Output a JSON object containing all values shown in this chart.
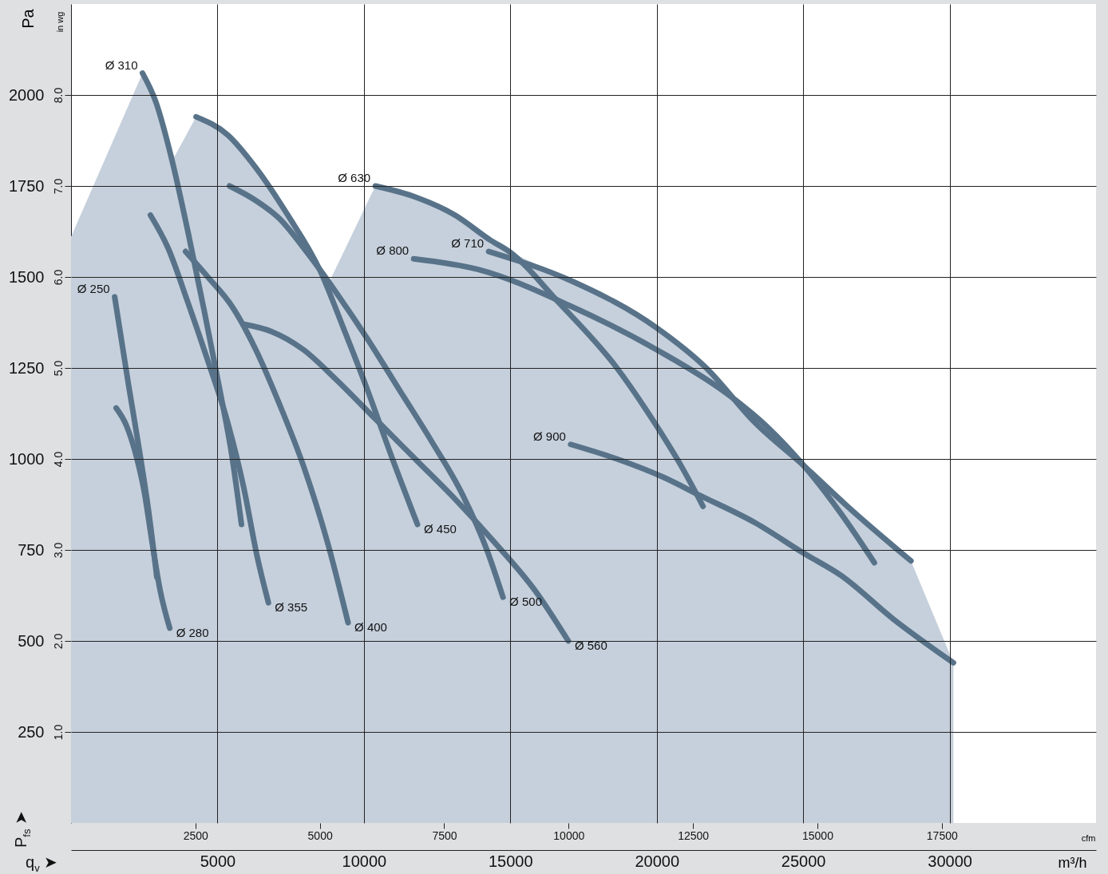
{
  "chart_data": {
    "type": "line",
    "xlabel": "m³/h",
    "x2label": "cfm",
    "ylabel": "Pa",
    "y2label": "in wg",
    "xlim": [
      0,
      35000
    ],
    "xticks": [
      5000,
      10000,
      15000,
      20000,
      25000,
      30000
    ],
    "x2lim": [
      0,
      20600
    ],
    "x2ticks": [
      2500,
      5000,
      7500,
      10000,
      12500,
      15000,
      17500
    ],
    "ylim": [
      0,
      2250
    ],
    "yticks": [
      250,
      500,
      750,
      1000,
      1250,
      1500,
      1750,
      2000
    ],
    "y2lim": [
      0,
      9.0
    ],
    "y2ticks": [
      {
        "value": 1,
        "label": "1.0"
      },
      {
        "value": 2,
        "label": "2.0"
      },
      {
        "value": 3,
        "label": "3.0"
      },
      {
        "value": 4,
        "label": "4.0"
      },
      {
        "value": 5,
        "label": "5.0"
      },
      {
        "value": 6,
        "label": "6.0"
      },
      {
        "value": 7,
        "label": "7.0"
      },
      {
        "value": 8,
        "label": "8.0"
      }
    ],
    "grid": true,
    "series": [
      {
        "type": "area",
        "color": "#c6d0dc",
        "x": [
          0,
          2440,
          3530,
          4270,
          5350,
          6310,
          7400,
          8490,
          8840,
          10390,
          11750,
          13110,
          14960,
          17060,
          20000,
          21690,
          23350,
          25040,
          26510,
          28680,
          30130
        ],
        "values": [
          1610,
          2060,
          1830,
          1940,
          1890,
          1800,
          1670,
          1520,
          1490,
          1750,
          1720,
          1670,
          1570,
          1490,
          1360,
          1250,
          1100,
          980,
          870,
          720,
          440
        ]
      },
      {
        "color": "#587389",
        "x": [
          1490,
          1950,
          2360,
          2660,
          2930
        ],
        "values": [
          1445,
          1210,
          1010,
          850,
          675
        ]
      },
      {
        "color": "#587389",
        "x": [
          1540,
          1900,
          2220,
          2500,
          2770,
          3040,
          3370
        ],
        "values": [
          1140,
          1090,
          1010,
          910,
          770,
          640,
          535
        ]
      },
      {
        "type": "line",
        "color": "#587389",
        "x": [
          2440,
          2900,
          3450,
          3990,
          4540,
          5080,
          5490,
          5820
        ],
        "values": [
          2060,
          1980,
          1820,
          1625,
          1410,
          1190,
          1010,
          820
        ]
      },
      {
        "type": "line",
        "color": "#587389",
        "x": [
          2710,
          3310,
          3990,
          4670,
          5350,
          5900,
          6360,
          6740
        ],
        "values": [
          1670,
          1580,
          1430,
          1270,
          1100,
          920,
          730,
          605
        ]
      },
      {
        "type": "line",
        "color": "#587389",
        "x": [
          3910,
          4670,
          5490,
          6310,
          7120,
          7940,
          8760,
          9460
        ],
        "values": [
          1570,
          1500,
          1420,
          1300,
          1150,
          980,
          770,
          550
        ]
      },
      {
        "type": "line",
        "color": "#587389",
        "x": [
          4270,
          5350,
          6310,
          7400,
          8490,
          9300,
          10120,
          10930,
          11830
        ],
        "values": [
          1940,
          1890,
          1800,
          1670,
          1520,
          1360,
          1190,
          1010,
          820
        ]
      },
      {
        "type": "line",
        "color": "#587389",
        "x": [
          5410,
          6310,
          7120,
          7940,
          9030,
          10120,
          11210,
          12300,
          13380,
          14200,
          14750
        ],
        "values": [
          1750,
          1710,
          1660,
          1580,
          1460,
          1330,
          1190,
          1050,
          900,
          750,
          620
        ]
      },
      {
        "type": "line",
        "color": "#587389",
        "x": [
          5900,
          6850,
          7940,
          9030,
          10390,
          11750,
          13110,
          14470,
          15830,
          16980
        ],
        "values": [
          1370,
          1350,
          1300,
          1220,
          1110,
          1000,
          890,
          770,
          640,
          500
        ]
      },
      {
        "type": "line",
        "color": "#587389",
        "x": [
          10390,
          11750,
          13110,
          14340,
          14960,
          16650,
          18640,
          20000,
          20840,
          21580
        ],
        "values": [
          1750,
          1720,
          1670,
          1600,
          1570,
          1430,
          1250,
          1090,
          980,
          870
        ]
      },
      {
        "type": "line",
        "color": "#587389",
        "x": [
          14260,
          17060,
          20000,
          21690,
          23350,
          25040,
          26510,
          28680
        ],
        "values": [
          1570,
          1490,
          1360,
          1250,
          1100,
          980,
          870,
          720
        ]
      },
      {
        "type": "line",
        "color": "#587389",
        "x": [
          11700,
          13930,
          17060,
          20000,
          22390,
          23750,
          25040,
          26290,
          27430
        ],
        "values": [
          1550,
          1520,
          1420,
          1300,
          1180,
          1090,
          980,
          850,
          715
        ]
      },
      {
        "type": "line",
        "color": "#587389",
        "x": [
          17060,
          18640,
          20220,
          21470,
          23350,
          25040,
          26290,
          28080,
          30130
        ],
        "values": [
          1040,
          1000,
          950,
          900,
          825,
          740,
          680,
          560,
          440
        ]
      }
    ],
    "annotations": [
      {
        "text": "Ø 310",
        "x": 2440,
        "y": 2060
      },
      {
        "text": "Ø 250",
        "x": 1490,
        "y": 1445
      },
      {
        "text": "Ø 280",
        "x": 3370,
        "y": 535
      },
      {
        "text": "Ø 355",
        "x": 6740,
        "y": 605
      },
      {
        "text": "Ø 400",
        "x": 9460,
        "y": 550
      },
      {
        "text": "Ø 450",
        "x": 11830,
        "y": 820
      },
      {
        "text": "Ø 500",
        "x": 14750,
        "y": 620
      },
      {
        "text": "Ø 560",
        "x": 16980,
        "y": 500
      },
      {
        "text": "Ø 630",
        "x": 10390,
        "y": 1750
      },
      {
        "text": "Ø 710",
        "x": 14260,
        "y": 1570
      },
      {
        "text": "Ø 800",
        "x": 11700,
        "y": 1550
      },
      {
        "text": "Ø 900",
        "x": 17060,
        "y": 1040
      },
      "P$_{fs}$ ➤",
      "q$_{v}$ ➤"
    ]
  }
}
